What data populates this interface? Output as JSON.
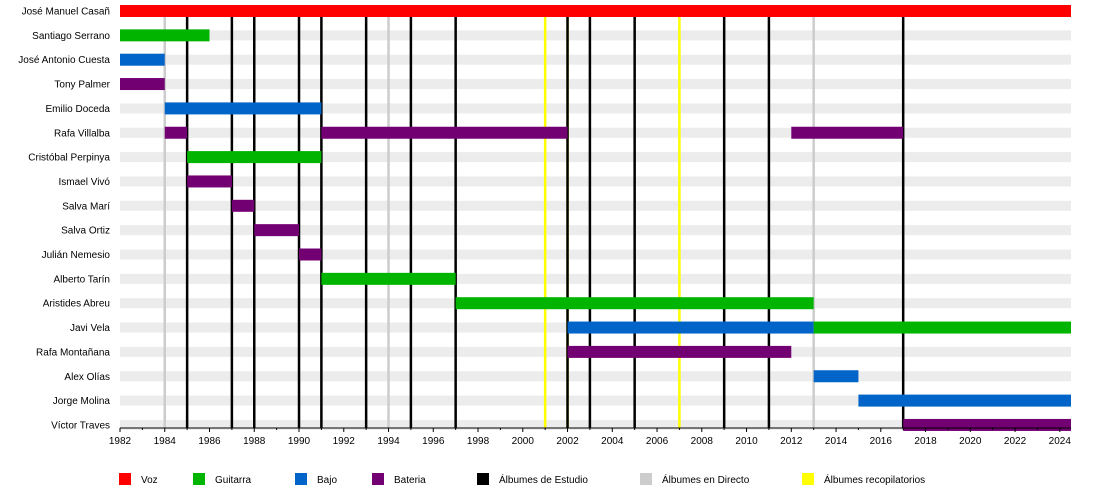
{
  "chart_data": {
    "type": "timeline",
    "x_range": [
      1982,
      2024.5
    ],
    "x_ticks": [
      "1982",
      "1984",
      "1986",
      "1988",
      "1990",
      "1992",
      "1994",
      "1996",
      "1998",
      "2000",
      "2002",
      "2004",
      "2006",
      "2008",
      "2010",
      "2012",
      "2014",
      "2016",
      "2018",
      "2020",
      "2022",
      "2024"
    ],
    "roles": [
      {
        "key": "voz",
        "label": "Voz",
        "color": "#ff0000"
      },
      {
        "key": "guitarra",
        "label": "Guitarra",
        "color": "#00b400"
      },
      {
        "key": "bajo",
        "label": "Bajo",
        "color": "#0064c8"
      },
      {
        "key": "bateria",
        "label": "Bateria",
        "color": "#730073"
      }
    ],
    "release_types": [
      {
        "key": "estudio",
        "label": "Álbumes de Estudio",
        "color": "#000000"
      },
      {
        "key": "directo",
        "label": "Álbumes en Directo",
        "color": "#cccccc"
      },
      {
        "key": "recopilatorios",
        "label": "Álbumes recopilatorios",
        "color": "#ffff00"
      }
    ],
    "releases": {
      "estudio": [
        1985,
        1987,
        1988,
        1990,
        1991,
        1993,
        1995,
        1997,
        2002,
        2003,
        2005,
        2009,
        2011,
        2017
      ],
      "directo": [
        1984,
        1994,
        2013
      ],
      "recopilatorios": [
        2001,
        2002,
        2007
      ]
    },
    "members": [
      {
        "name": "José Manuel Casañ",
        "periods": [
          {
            "role": "voz",
            "start": 1982,
            "end": 2024.5
          }
        ]
      },
      {
        "name": "Santiago Serrano",
        "periods": [
          {
            "role": "guitarra",
            "start": 1982,
            "end": 1986
          }
        ]
      },
      {
        "name": "José Antonio Cuesta",
        "periods": [
          {
            "role": "bajo",
            "start": 1982,
            "end": 1984
          }
        ]
      },
      {
        "name": "Tony Palmer",
        "periods": [
          {
            "role": "bateria",
            "start": 1982,
            "end": 1984
          }
        ]
      },
      {
        "name": "Emilio Doceda",
        "periods": [
          {
            "role": "bajo",
            "start": 1984,
            "end": 1991
          }
        ]
      },
      {
        "name": "Rafa Villalba",
        "periods": [
          {
            "role": "bateria",
            "start": 1984,
            "end": 1985
          },
          {
            "role": "bateria",
            "start": 1991,
            "end": 2002
          },
          {
            "role": "bateria",
            "start": 2012,
            "end": 2017
          }
        ]
      },
      {
        "name": "Cristóbal Perpinya",
        "periods": [
          {
            "role": "guitarra",
            "start": 1985,
            "end": 1991
          }
        ]
      },
      {
        "name": "Ismael Vivó",
        "periods": [
          {
            "role": "bateria",
            "start": 1985,
            "end": 1987
          }
        ]
      },
      {
        "name": "Salva Marí",
        "periods": [
          {
            "role": "bateria",
            "start": 1987,
            "end": 1988
          }
        ]
      },
      {
        "name": "Salva Ortiz",
        "periods": [
          {
            "role": "bateria",
            "start": 1988,
            "end": 1990
          }
        ]
      },
      {
        "name": "Julián Nemesio",
        "periods": [
          {
            "role": "bateria",
            "start": 1990,
            "end": 1991
          }
        ]
      },
      {
        "name": "Alberto Tarín",
        "periods": [
          {
            "role": "guitarra",
            "start": 1991,
            "end": 1997
          }
        ]
      },
      {
        "name": "Aristides Abreu",
        "periods": [
          {
            "role": "guitarra",
            "start": 1997,
            "end": 2013
          }
        ]
      },
      {
        "name": "Javi Vela",
        "periods": [
          {
            "role": "bajo",
            "start": 2002,
            "end": 2013
          },
          {
            "role": "guitarra",
            "start": 2013,
            "end": 2024.5
          }
        ]
      },
      {
        "name": "Rafa Montañana",
        "periods": [
          {
            "role": "bateria",
            "start": 2002,
            "end": 2012
          }
        ]
      },
      {
        "name": "Alex Olías",
        "periods": [
          {
            "role": "bajo",
            "start": 2013,
            "end": 2015
          }
        ]
      },
      {
        "name": "Jorge Molina",
        "periods": [
          {
            "role": "bajo",
            "start": 2015,
            "end": 2024.5
          }
        ]
      },
      {
        "name": "Víctor Traves",
        "periods": [
          {
            "role": "bateria",
            "start": 2017,
            "end": 2024.5
          }
        ]
      }
    ],
    "background_stripe_color": "#ececec"
  }
}
